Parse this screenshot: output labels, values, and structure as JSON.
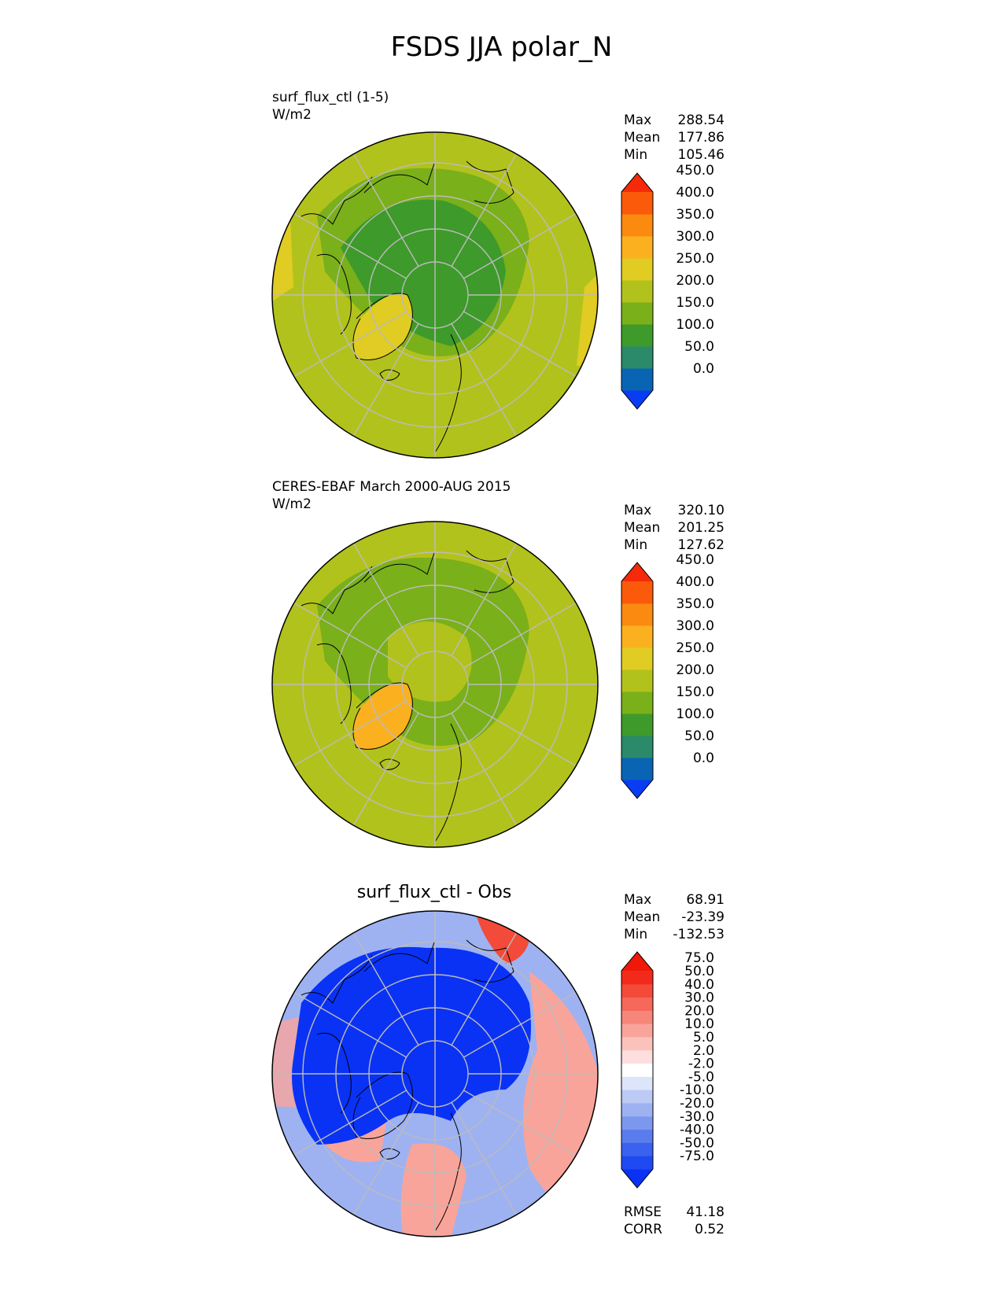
{
  "title": "FSDS JJA polar_N",
  "panels": [
    {
      "id": "test",
      "line1": "surf_flux_ctl (1-5)",
      "line2": "W/m2",
      "stats": [
        {
          "label": "Max",
          "value": "288.54"
        },
        {
          "label": "Mean",
          "value": "177.86"
        },
        {
          "label": "Min",
          "value": "105.46"
        }
      ],
      "colorbar": {
        "ticks": [
          "0.0",
          "50.0",
          "100.0",
          "150.0",
          "200.0",
          "250.0",
          "300.0",
          "350.0",
          "400.0",
          "450.0"
        ],
        "colors": [
          "#0a3cf5",
          "#0a64b4",
          "#2a8a6a",
          "#3e9a2a",
          "#7ab01a",
          "#b2c21c",
          "#e0cc22",
          "#fbb020",
          "#fb8a10",
          "#fb5a0a",
          "#f52a08"
        ]
      },
      "map_colors": {
        "low": "#3e9a2a",
        "mid": "#7ab01a",
        "high": "#b2c21c",
        "hot": "#e0cc22"
      }
    },
    {
      "id": "ref",
      "line1": "CERES-EBAF March 2000-AUG 2015",
      "line2": "W/m2",
      "stats": [
        {
          "label": "Max",
          "value": "320.10"
        },
        {
          "label": "Mean",
          "value": "201.25"
        },
        {
          "label": "Min",
          "value": "127.62"
        }
      ],
      "colorbar": {
        "ticks": [
          "0.0",
          "50.0",
          "100.0",
          "150.0",
          "200.0",
          "250.0",
          "300.0",
          "350.0",
          "400.0",
          "450.0"
        ],
        "colors": [
          "#0a3cf5",
          "#0a64b4",
          "#2a8a6a",
          "#3e9a2a",
          "#7ab01a",
          "#b2c21c",
          "#e0cc22",
          "#fbb020",
          "#fb8a10",
          "#fb5a0a",
          "#f52a08"
        ]
      },
      "map_colors": {
        "low": "#3e9a2a",
        "mid": "#7ab01a",
        "high": "#b2c21c",
        "hot": "#fbb020"
      }
    },
    {
      "id": "diff",
      "center_title": "surf_flux_ctl - Obs",
      "stats": [
        {
          "label": "Max",
          "value": "68.91"
        },
        {
          "label": "Mean",
          "value": "-23.39"
        },
        {
          "label": "Min",
          "value": "-132.53"
        }
      ],
      "colorbar": {
        "ticks": [
          "-75.0",
          "-50.0",
          "-40.0",
          "-30.0",
          "-20.0",
          "-10.0",
          "-5.0",
          "-2.0",
          "2.0",
          "5.0",
          "10.0",
          "20.0",
          "30.0",
          "40.0",
          "50.0",
          "75.0"
        ],
        "colors": [
          "#0a32f5",
          "#1f4af2",
          "#3a62ee",
          "#5a7cec",
          "#7c98ee",
          "#9eb2f2",
          "#bccaf5",
          "#dde5fa",
          "#ffffff",
          "#fcdede",
          "#fbc2bc",
          "#f9a49a",
          "#f7867a",
          "#f5685a",
          "#f34a3a",
          "#f12a1c",
          "#f01808"
        ]
      },
      "map_colors": {
        "low": "#0a32f5",
        "mid": "#9eb2f2",
        "pos": "#f9a49a",
        "strong": "#f34a3a"
      },
      "footer": [
        {
          "label": "RMSE",
          "value": "41.18"
        },
        {
          "label": "CORR",
          "value": "0.52"
        }
      ]
    }
  ]
}
